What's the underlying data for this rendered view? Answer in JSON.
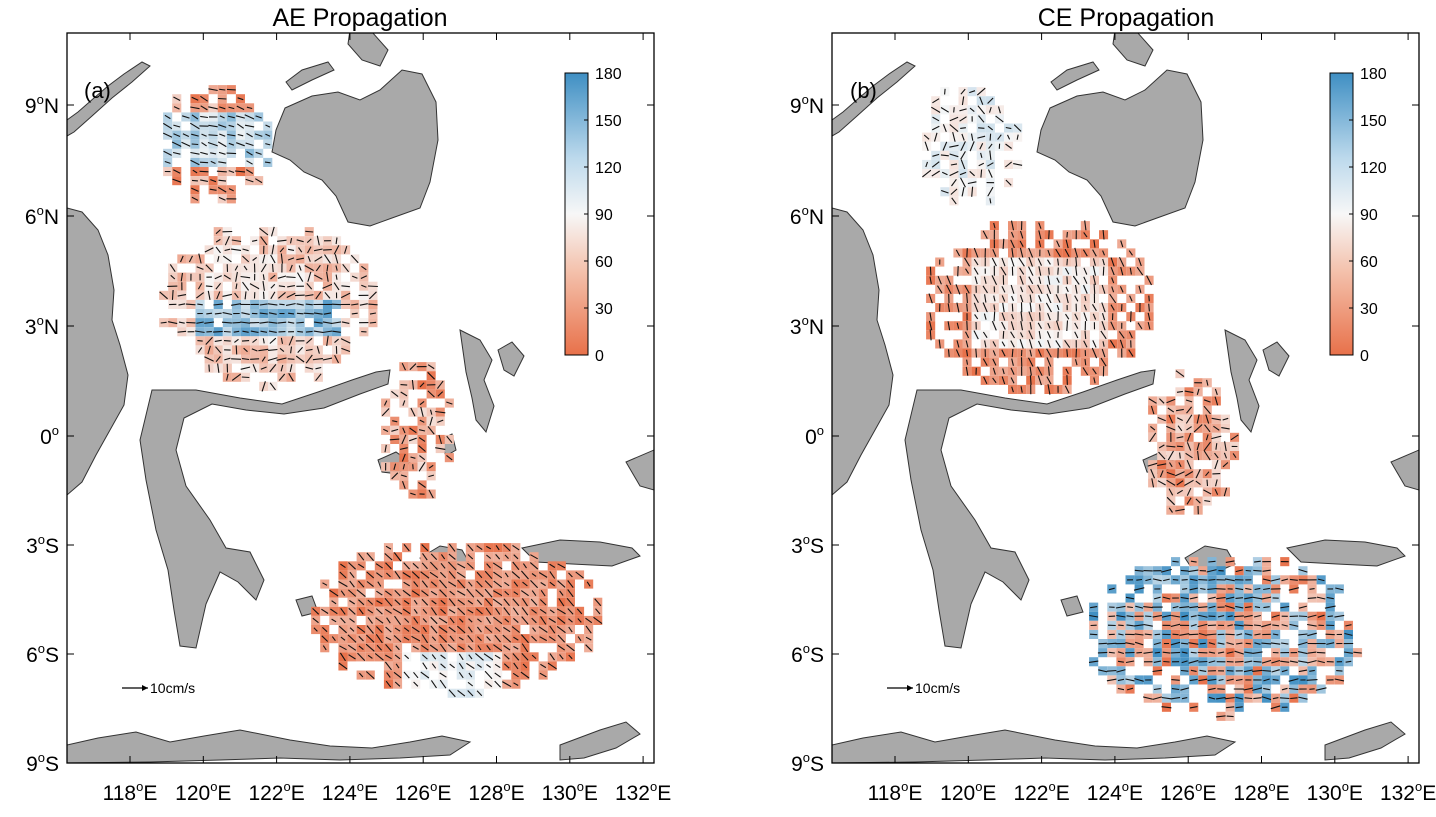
{
  "colors": {
    "land": "#a9a9a9",
    "scale_low": "#e8714a",
    "scale_mid": "#f7f7f7",
    "scale_high": "#3f8fc3"
  },
  "panels": [
    {
      "title": "AE Propagation",
      "label": "(a)",
      "scale_text": "10cm/s",
      "colorbar_ticks": [
        "180",
        "150",
        "120",
        "90",
        "60",
        "30",
        "0"
      ],
      "y_ticks": [
        {
          "deg": "9",
          "hemi": "N"
        },
        {
          "deg": "6",
          "hemi": "N"
        },
        {
          "deg": "3",
          "hemi": "N"
        },
        {
          "deg": "0",
          "hemi": ""
        },
        {
          "deg": "3",
          "hemi": "S"
        },
        {
          "deg": "6",
          "hemi": "S"
        },
        {
          "deg": "9",
          "hemi": "S"
        }
      ],
      "x_ticks": [
        "118",
        "120",
        "122",
        "124",
        "126",
        "128",
        "130",
        "132"
      ]
    },
    {
      "title": "CE Propagation",
      "label": "(b)",
      "scale_text": "10cm/s",
      "colorbar_ticks": [
        "180",
        "150",
        "120",
        "90",
        "60",
        "30",
        "0"
      ],
      "y_ticks": [
        {
          "deg": "9",
          "hemi": "N"
        },
        {
          "deg": "6",
          "hemi": "N"
        },
        {
          "deg": "3",
          "hemi": "N"
        },
        {
          "deg": "0",
          "hemi": ""
        },
        {
          "deg": "3",
          "hemi": "S"
        },
        {
          "deg": "6",
          "hemi": "S"
        },
        {
          "deg": "9",
          "hemi": "S"
        }
      ],
      "x_ticks": [
        "118",
        "120",
        "122",
        "124",
        "126",
        "128",
        "130",
        "132"
      ]
    }
  ],
  "axis_units": {
    "degree_mark": "o",
    "east": "E"
  }
}
